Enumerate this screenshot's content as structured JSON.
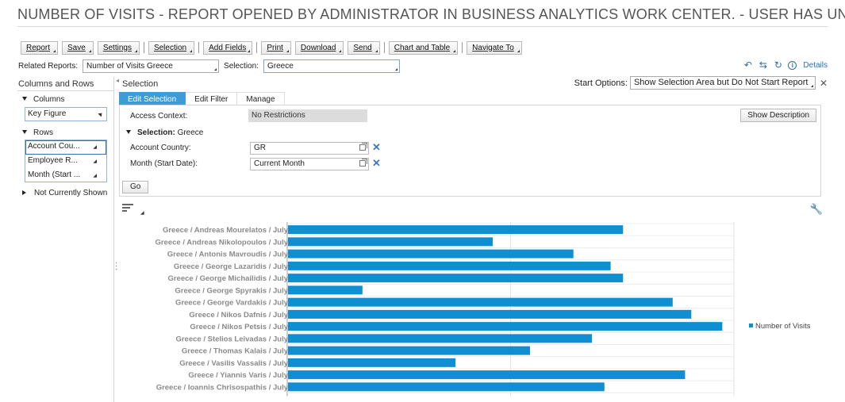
{
  "window": {
    "title": "NUMBER OF VISITS - REPORT OPENED BY ADMINISTRATOR IN BUSINESS ANALYTICS WORK CENTER. - USER HAS UN"
  },
  "toolbar": {
    "report": "Report",
    "save": "Save",
    "settings": "Settings",
    "selection": "Selection",
    "add_fields": "Add Fields",
    "print": "Print",
    "download": "Download",
    "send": "Send",
    "chart_and_table": "Chart and Table",
    "navigate_to": "Navigate To"
  },
  "related": {
    "label": "Related Reports:",
    "value": "Number of Visits Greece",
    "selection_label": "Selection:",
    "selection_value": "Greece",
    "details": "Details"
  },
  "left_panel": {
    "title": "Columns and Rows",
    "columns_label": "Columns",
    "columns_items": [
      "Key Figure"
    ],
    "rows_label": "Rows",
    "rows_items": [
      "Account Cou...",
      "Employee R...",
      "Month (Start ..."
    ],
    "not_shown_label": "Not Currently Shown"
  },
  "selection_panel": {
    "title": "Selection",
    "start_options_label": "Start Options:",
    "start_options_value": "Show Selection Area but Do Not Start Report",
    "tabs": [
      "Edit Selection",
      "Edit Filter",
      "Manage"
    ],
    "access_context_label": "Access Context:",
    "access_context_value": "No Restrictions",
    "selection_header": "Selection:",
    "selection_name": "Greece",
    "account_country_label": "Account Country:",
    "account_country_value": "GR",
    "month_label": "Month (Start Date):",
    "month_value": "Current Month",
    "show_description": "Show Description",
    "go": "Go"
  },
  "colors": {
    "bar": "#0f8fd1",
    "tab_active": "#3d9bd6",
    "link": "#2a6fb6"
  },
  "chart_data": {
    "type": "bar",
    "orientation": "horizontal",
    "categories": [
      "Greece / Andreas Mourelatos / July",
      "Greece / Andreas Nikolopoulos / July",
      "Greece / Antonis Mavroudis / July",
      "Greece / George Lazaridis / July",
      "Greece / George Michailidis / July",
      "Greece / George Spyrakis / July",
      "Greece / George Vardakis / July",
      "Greece / Nikos Dafnis / July",
      "Greece / Nikos Petsis / July",
      "Greece / Stelios Leivadas / July",
      "Greece / Thomas Kalais / July",
      "Greece / Vasilis Vassalis / July",
      "Greece / Yiannis Varis / July",
      "Greece / Ioannis Chrisospathis / July"
    ],
    "series": [
      {
        "name": "Number of Visits",
        "values": [
          27,
          16.5,
          23,
          26,
          27,
          6,
          31,
          32.5,
          35,
          24.5,
          19.5,
          13.5,
          32,
          25.5
        ]
      }
    ],
    "xlim": [
      0,
      36
    ],
    "grid": true,
    "legend": "right"
  }
}
